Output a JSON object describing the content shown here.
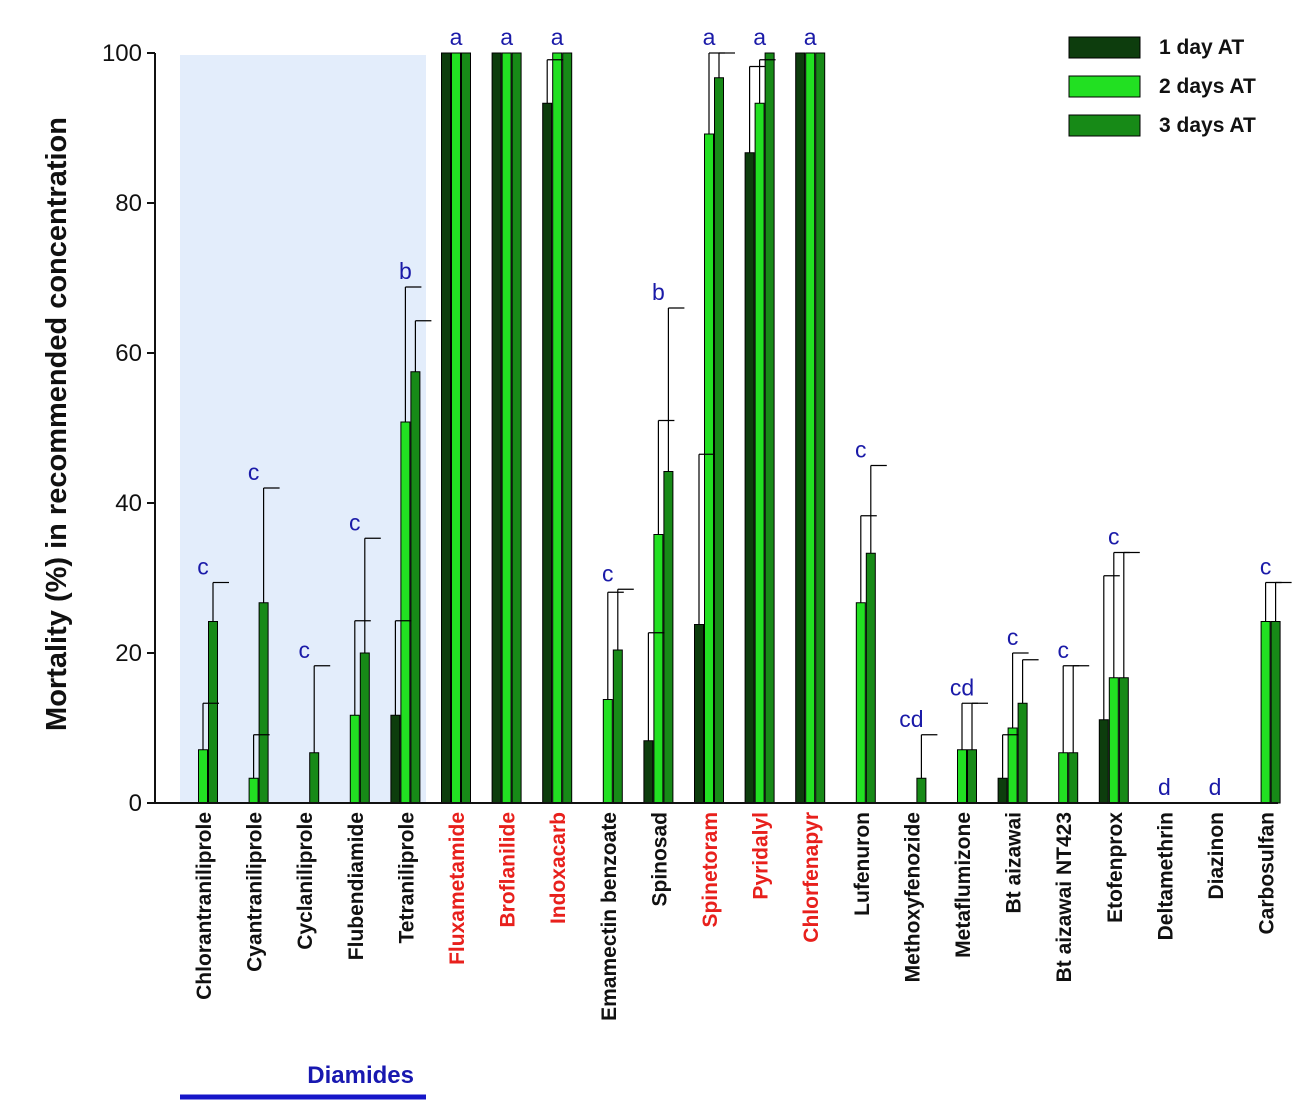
{
  "chart_data": {
    "type": "bar",
    "title": "",
    "ylabel": "Mortality (%) in recommended concentration",
    "xlabel": "",
    "ylim": [
      0,
      100
    ],
    "yticks": [
      0,
      20,
      40,
      60,
      80,
      100
    ],
    "grid": false,
    "legend_position": "top-right",
    "categories": [
      "Chlorantraniliprole",
      "Cyantraniliprole",
      "Cyclaniliprole",
      "Flubendiamide",
      "Tetraniliprole",
      "Fluxametamide",
      "Broflanilide",
      "Indoxacarb",
      "Emamectin benzoate",
      "Spinosad",
      "Spinetoram",
      "Pyridalyl",
      "Chlorfenapyr",
      "Lufenuron",
      "Methoxyfenozide",
      "Metaflumizone",
      "Bt aizawai",
      "Bt aizawai NT423",
      "Etofenprox",
      "Deltamethrin",
      "Diazinon",
      "Carbosulfan"
    ],
    "highlighted_categories": [
      "Fluxametamide",
      "Broflanilide",
      "Indoxacarb",
      "Spinetoram",
      "Pyridalyl",
      "Chlorfenapyr"
    ],
    "highlight_color": "#e8201c",
    "series": [
      {
        "name": "1 day AT",
        "color": "#0d3d0d",
        "values": [
          0,
          0,
          0,
          0,
          11.7,
          100,
          100,
          93.3,
          0,
          8.3,
          23.8,
          86.7,
          100,
          0,
          0,
          0,
          3.3,
          0,
          11.1,
          0,
          0,
          0
        ],
        "errors": [
          0,
          0,
          0,
          0,
          12.6,
          0,
          0,
          5.8,
          0,
          14.4,
          22.7,
          11.5,
          0,
          0,
          0,
          0,
          5.8,
          0,
          19.2,
          0,
          0,
          0
        ]
      },
      {
        "name": "2 days AT",
        "color": "#22e022",
        "values": [
          7.1,
          3.3,
          0,
          11.7,
          50.8,
          100,
          100,
          100,
          13.8,
          35.8,
          89.2,
          93.3,
          100,
          26.7,
          0,
          7.1,
          10,
          6.7,
          16.7,
          0,
          0,
          24.2
        ],
        "errors": [
          6.2,
          5.8,
          0,
          12.6,
          18,
          0,
          0,
          0,
          14.3,
          15.2,
          11,
          5.8,
          0,
          11.6,
          0,
          6.2,
          10,
          11.6,
          16.7,
          0,
          0,
          5.2
        ]
      },
      {
        "name": "3 days AT",
        "color": "#178a17",
        "values": [
          24.2,
          26.7,
          6.7,
          20,
          57.5,
          100,
          100,
          100,
          20.4,
          44.2,
          96.7,
          100,
          100,
          33.3,
          3.3,
          7.1,
          13.3,
          6.7,
          16.7,
          0,
          0,
          24.2
        ],
        "errors": [
          5.2,
          15.3,
          11.6,
          15.3,
          6.8,
          0,
          0,
          0,
          8.1,
          21.8,
          3.3,
          0,
          0,
          11.7,
          5.8,
          6.2,
          5.8,
          11.6,
          16.7,
          0,
          0,
          5.2
        ]
      }
    ],
    "significance_letters": [
      "c",
      "c",
      "c",
      "c",
      "b",
      "a",
      "a",
      "a",
      "c",
      "b",
      "a",
      "a",
      "a",
      "c",
      "cd",
      "cd",
      "c",
      "c",
      "c",
      "d",
      "d",
      "c"
    ],
    "group_annotation": {
      "label": "Diamides",
      "from_index": 0,
      "to_index": 4
    }
  }
}
